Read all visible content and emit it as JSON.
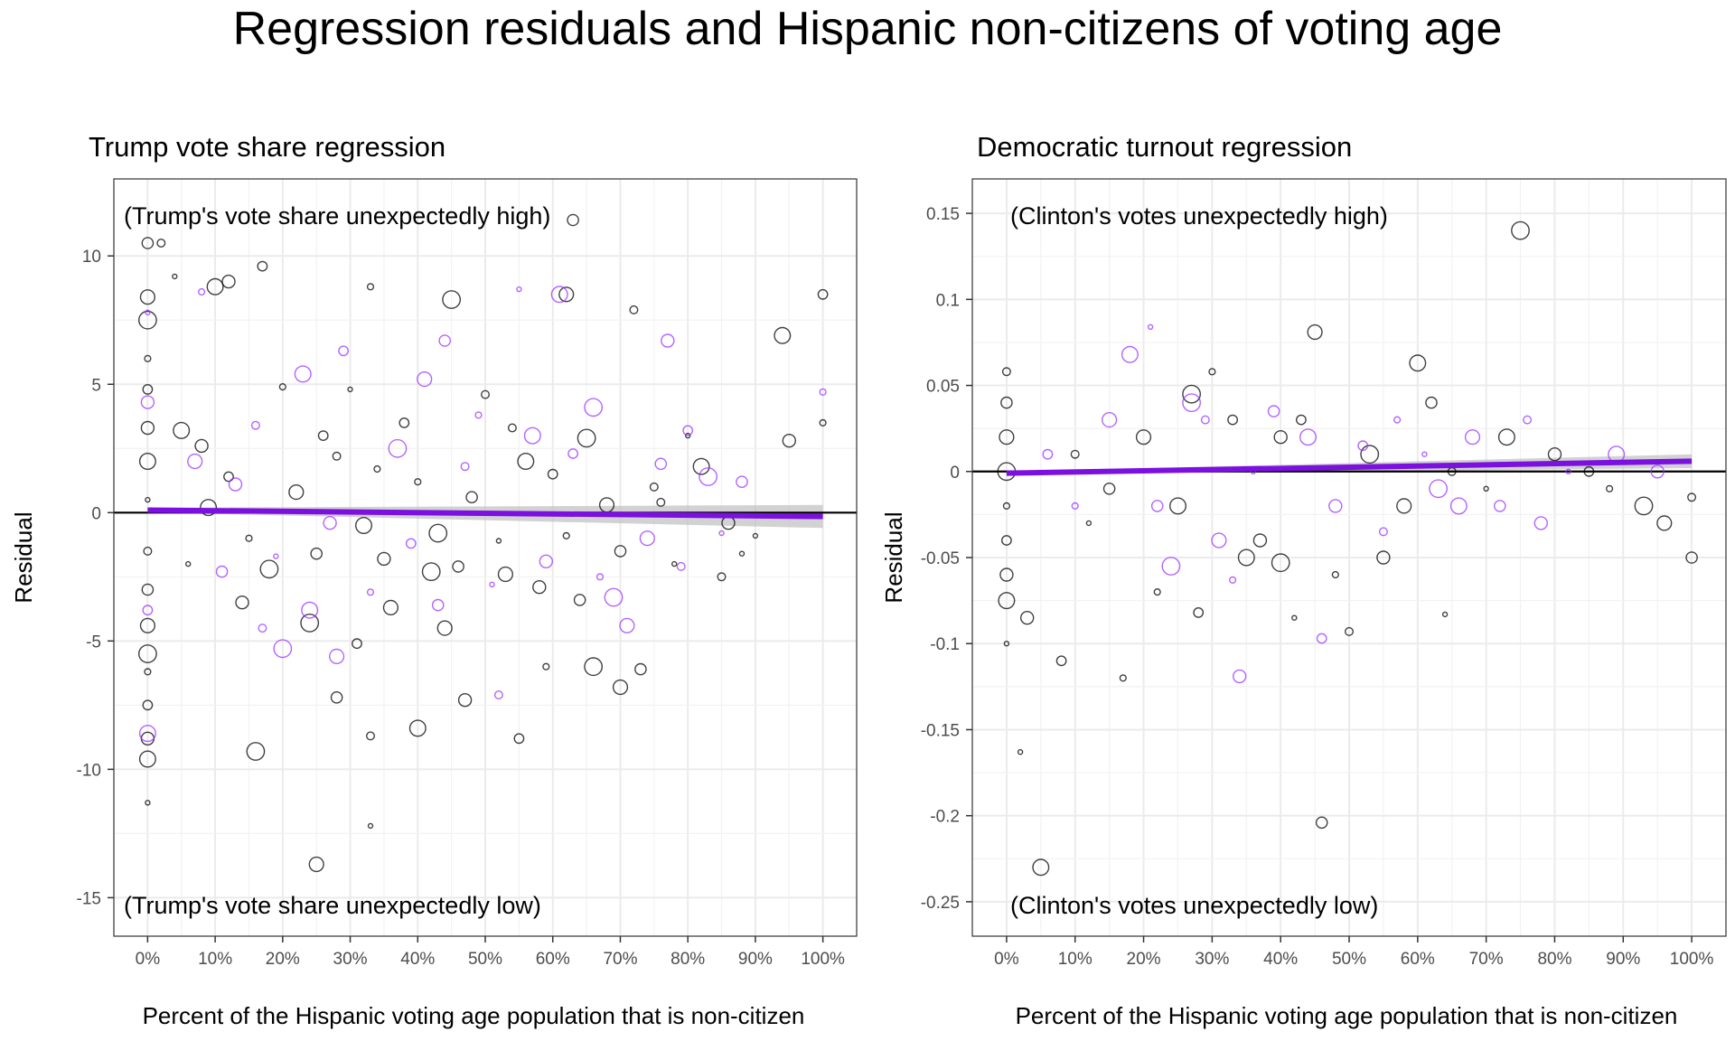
{
  "title": "Regression residuals and Hispanic non-citizens of voting age",
  "colors": {
    "black": "#000000",
    "purple": "#9b30ff",
    "fit": "#7b10e0",
    "band": "#bfbfbf",
    "grid": "#ebebeb"
  },
  "chart_data": [
    {
      "type": "scatter",
      "title": "Trump vote share regression",
      "xlabel": "Percent of the Hispanic voting age population that is non-citizen",
      "ylabel": "Residual",
      "xlim": [
        -5,
        105
      ],
      "ylim": [
        -16.5,
        13
      ],
      "x_ticks": [
        0,
        10,
        20,
        30,
        40,
        50,
        60,
        70,
        80,
        90,
        100
      ],
      "x_tick_labels": [
        "0%",
        "10%",
        "20%",
        "30%",
        "40%",
        "50%",
        "60%",
        "70%",
        "80%",
        "90%",
        "100%"
      ],
      "y_ticks": [
        -15,
        -10,
        -5,
        0,
        5,
        10
      ],
      "y_tick_labels": [
        "-15",
        "-10",
        "-5",
        "0",
        "5",
        "10"
      ],
      "annotation_high": "(Trump's vote share unexpectedly high)",
      "annotation_low": "(Trump's vote share unexpectedly low)",
      "fit_line": {
        "x": [
          0,
          100
        ],
        "y": [
          0.1,
          -0.15
        ],
        "band_halfwidth_end": 0.45
      },
      "series": [
        {
          "color": "black",
          "points": [
            [
              0,
              -11.3
            ],
            [
              0,
              -9.6
            ],
            [
              0,
              -8.8
            ],
            [
              0,
              -7.5
            ],
            [
              0,
              -6.2
            ],
            [
              0,
              -5.5
            ],
            [
              0,
              -4.4
            ],
            [
              0,
              -3.0
            ],
            [
              0,
              -1.5
            ],
            [
              0,
              0.5
            ],
            [
              0,
              2.0
            ],
            [
              0,
              3.3
            ],
            [
              0,
              4.8
            ],
            [
              0,
              6.0
            ],
            [
              0,
              7.5
            ],
            [
              0,
              8.4
            ],
            [
              0,
              10.5
            ],
            [
              2,
              10.5
            ],
            [
              4,
              9.2
            ],
            [
              10,
              8.8
            ],
            [
              12,
              9.0
            ],
            [
              17,
              9.6
            ],
            [
              33,
              8.8
            ],
            [
              45,
              8.3
            ],
            [
              62,
              8.5
            ],
            [
              63,
              11.4
            ],
            [
              72,
              7.9
            ],
            [
              80,
              3.0
            ],
            [
              94,
              6.9
            ],
            [
              95,
              2.8
            ],
            [
              100,
              8.5
            ],
            [
              100,
              3.5
            ],
            [
              16,
              -9.3
            ],
            [
              25,
              -13.7
            ],
            [
              28,
              -7.2
            ],
            [
              33,
              -8.7
            ],
            [
              33,
              -12.2
            ],
            [
              40,
              -8.4
            ],
            [
              47,
              -7.3
            ],
            [
              55,
              -8.8
            ],
            [
              59,
              -6.0
            ],
            [
              66,
              -6.0
            ],
            [
              70,
              -6.8
            ],
            [
              73,
              -6.1
            ],
            [
              85,
              -2.5
            ],
            [
              88,
              -1.6
            ],
            [
              5,
              3.2
            ],
            [
              8,
              2.6
            ],
            [
              12,
              1.4
            ],
            [
              15,
              -1.0
            ],
            [
              18,
              -2.2
            ],
            [
              22,
              0.8
            ],
            [
              25,
              -1.6
            ],
            [
              28,
              2.2
            ],
            [
              30,
              4.8
            ],
            [
              32,
              -0.5
            ],
            [
              35,
              -1.8
            ],
            [
              38,
              3.5
            ],
            [
              40,
              1.2
            ],
            [
              42,
              -2.3
            ],
            [
              44,
              -4.5
            ],
            [
              48,
              0.6
            ],
            [
              50,
              4.6
            ],
            [
              52,
              -1.1
            ],
            [
              56,
              2.0
            ],
            [
              58,
              -2.9
            ],
            [
              60,
              1.5
            ],
            [
              62,
              -0.9
            ],
            [
              65,
              2.9
            ],
            [
              68,
              0.3
            ],
            [
              70,
              -1.5
            ],
            [
              75,
              1.0
            ],
            [
              78,
              -2.0
            ],
            [
              82,
              1.8
            ],
            [
              86,
              -0.4
            ],
            [
              31,
              -5.1
            ],
            [
              20,
              4.9
            ],
            [
              24,
              -4.3
            ],
            [
              36,
              -3.7
            ],
            [
              46,
              -2.1
            ],
            [
              54,
              3.3
            ],
            [
              6,
              -2.0
            ],
            [
              9,
              0.2
            ],
            [
              14,
              -3.5
            ],
            [
              26,
              3.0
            ],
            [
              34,
              1.7
            ],
            [
              43,
              -0.8
            ],
            [
              53,
              -2.4
            ],
            [
              64,
              -3.4
            ],
            [
              76,
              0.4
            ],
            [
              90,
              -0.9
            ]
          ]
        },
        {
          "color": "purple",
          "points": [
            [
              0,
              7.8
            ],
            [
              0,
              -8.6
            ],
            [
              0,
              4.3
            ],
            [
              0,
              -3.8
            ],
            [
              8,
              8.6
            ],
            [
              20,
              -5.3
            ],
            [
              28,
              -5.6
            ],
            [
              44,
              6.7
            ],
            [
              52,
              -7.1
            ],
            [
              55,
              8.7
            ],
            [
              61,
              8.5
            ],
            [
              77,
              6.7
            ],
            [
              80,
              3.2
            ],
            [
              100,
              4.7
            ],
            [
              83,
              1.4
            ],
            [
              7,
              2.0
            ],
            [
              11,
              -2.3
            ],
            [
              16,
              3.4
            ],
            [
              19,
              -1.7
            ],
            [
              23,
              5.4
            ],
            [
              27,
              -0.4
            ],
            [
              29,
              6.3
            ],
            [
              33,
              -3.1
            ],
            [
              37,
              2.5
            ],
            [
              41,
              5.2
            ],
            [
              43,
              -3.6
            ],
            [
              47,
              1.8
            ],
            [
              51,
              -2.8
            ],
            [
              57,
              3.0
            ],
            [
              59,
              -1.9
            ],
            [
              63,
              2.3
            ],
            [
              67,
              -2.5
            ],
            [
              69,
              -3.3
            ],
            [
              74,
              -1.0
            ],
            [
              76,
              1.9
            ],
            [
              79,
              -2.1
            ],
            [
              85,
              -0.8
            ],
            [
              24,
              -3.8
            ],
            [
              13,
              1.1
            ],
            [
              39,
              -1.2
            ],
            [
              49,
              3.8
            ],
            [
              66,
              4.1
            ],
            [
              71,
              -4.4
            ],
            [
              88,
              1.2
            ],
            [
              17,
              -4.5
            ]
          ]
        }
      ]
    },
    {
      "type": "scatter",
      "title": "Democratic turnout regression",
      "xlabel": "Percent of the Hispanic voting age population that is non-citizen",
      "ylabel": "Residual",
      "xlim": [
        -5,
        105
      ],
      "ylim": [
        -0.27,
        0.17
      ],
      "x_ticks": [
        0,
        10,
        20,
        30,
        40,
        50,
        60,
        70,
        80,
        90,
        100
      ],
      "x_tick_labels": [
        "0%",
        "10%",
        "20%",
        "30%",
        "40%",
        "50%",
        "60%",
        "70%",
        "80%",
        "90%",
        "100%"
      ],
      "y_ticks": [
        -0.25,
        -0.2,
        -0.15,
        -0.1,
        -0.05,
        0,
        0.05,
        0.1,
        0.15
      ],
      "y_tick_labels": [
        "-0.25",
        "-0.2",
        "-0.15",
        "-0.1",
        "-0.05",
        "0",
        "0.05",
        "0.1",
        "0.15"
      ],
      "annotation_high": "(Clinton's votes unexpectedly high)",
      "annotation_low": "(Clinton's votes unexpectedly low)",
      "fit_line": {
        "x": [
          0,
          100
        ],
        "y": [
          -0.001,
          0.006
        ],
        "band_halfwidth_end": 0.004
      },
      "series": [
        {
          "color": "black",
          "points": [
            [
              0,
              -0.1
            ],
            [
              0,
              -0.075
            ],
            [
              0,
              -0.06
            ],
            [
              0,
              -0.04
            ],
            [
              0,
              -0.02
            ],
            [
              0,
              0.0
            ],
            [
              0,
              0.02
            ],
            [
              0,
              0.04
            ],
            [
              0,
              0.058
            ],
            [
              2,
              -0.163
            ],
            [
              5,
              -0.23
            ],
            [
              3,
              -0.085
            ],
            [
              8,
              -0.11
            ],
            [
              17,
              -0.12
            ],
            [
              75,
              0.14
            ],
            [
              45,
              0.081
            ],
            [
              46,
              -0.204
            ],
            [
              50,
              -0.093
            ],
            [
              42,
              -0.085
            ],
            [
              35,
              -0.05
            ],
            [
              37,
              -0.04
            ],
            [
              33,
              0.03
            ],
            [
              30,
              0.058
            ],
            [
              27,
              0.045
            ],
            [
              20,
              0.02
            ],
            [
              15,
              -0.01
            ],
            [
              10,
              0.01
            ],
            [
              12,
              -0.03
            ],
            [
              25,
              -0.02
            ],
            [
              40,
              0.02
            ],
            [
              43,
              0.03
            ],
            [
              48,
              -0.06
            ],
            [
              53,
              0.01
            ],
            [
              58,
              -0.02
            ],
            [
              62,
              0.04
            ],
            [
              65,
              0.0
            ],
            [
              70,
              -0.01
            ],
            [
              73,
              0.02
            ],
            [
              80,
              0.01
            ],
            [
              85,
              0.0
            ],
            [
              88,
              -0.01
            ],
            [
              93,
              -0.02
            ],
            [
              96,
              -0.03
            ],
            [
              100,
              -0.05
            ],
            [
              100,
              -0.015
            ],
            [
              64,
              -0.083
            ],
            [
              60,
              0.063
            ],
            [
              55,
              -0.05
            ],
            [
              28,
              -0.082
            ],
            [
              22,
              -0.07
            ],
            [
              40,
              -0.053
            ]
          ]
        },
        {
          "color": "purple",
          "points": [
            [
              21,
              0.084
            ],
            [
              18,
              0.068
            ],
            [
              34,
              -0.119
            ],
            [
              46,
              -0.097
            ],
            [
              33,
              -0.063
            ],
            [
              24,
              -0.055
            ],
            [
              15,
              0.03
            ],
            [
              22,
              -0.02
            ],
            [
              29,
              0.03
            ],
            [
              36,
              0.0
            ],
            [
              44,
              0.02
            ],
            [
              48,
              -0.02
            ],
            [
              52,
              0.015
            ],
            [
              57,
              0.03
            ],
            [
              63,
              -0.01
            ],
            [
              68,
              0.02
            ],
            [
              72,
              -0.02
            ],
            [
              76,
              0.03
            ],
            [
              82,
              0.0
            ],
            [
              89,
              0.01
            ],
            [
              95,
              0.0
            ],
            [
              6,
              0.01
            ],
            [
              10,
              -0.02
            ],
            [
              27,
              0.04
            ],
            [
              31,
              -0.04
            ],
            [
              39,
              0.035
            ],
            [
              55,
              -0.035
            ],
            [
              61,
              0.01
            ],
            [
              66,
              -0.02
            ],
            [
              78,
              -0.03
            ]
          ]
        }
      ]
    }
  ]
}
